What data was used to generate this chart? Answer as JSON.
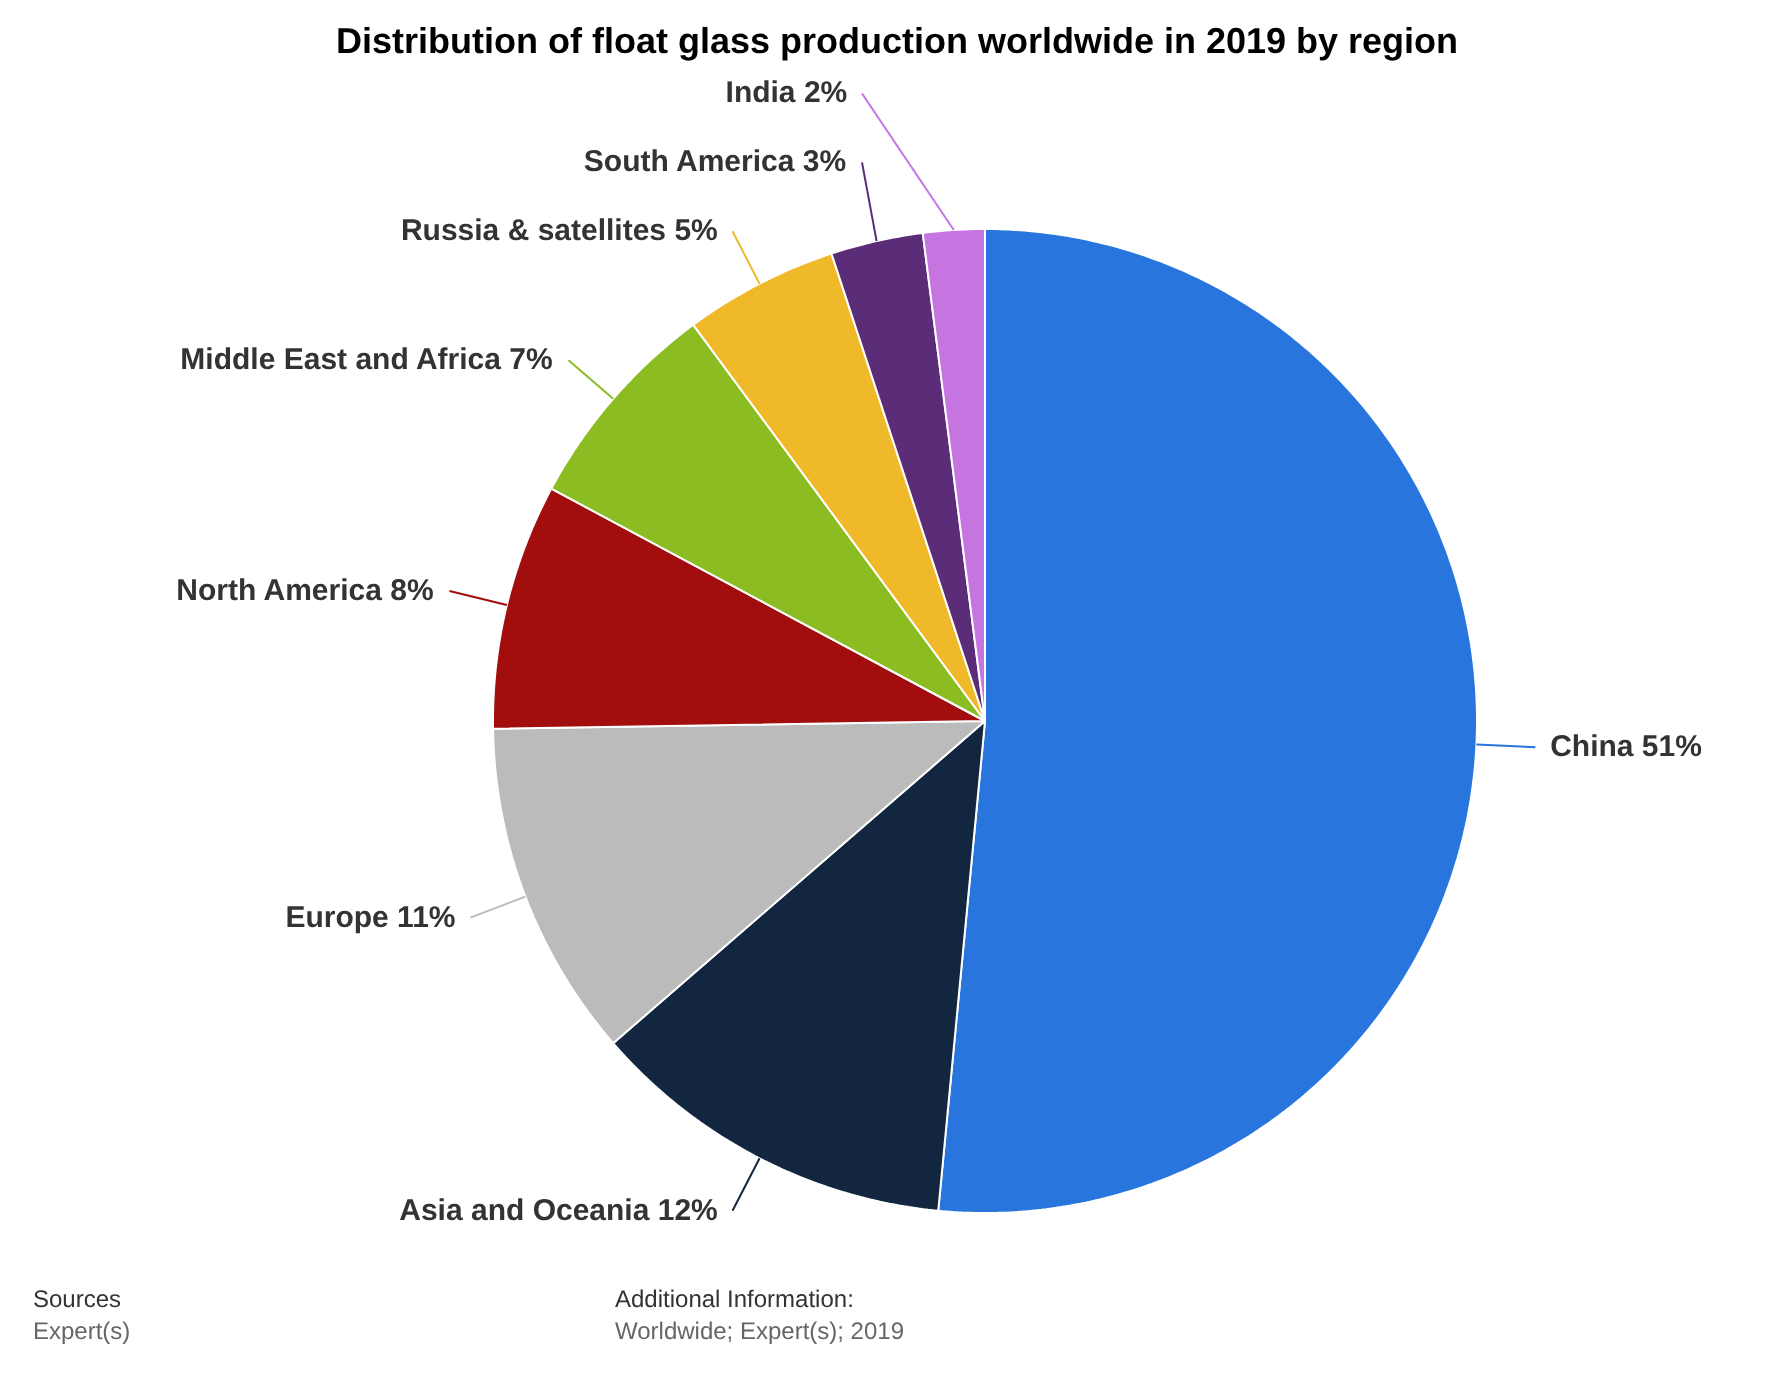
{
  "chart_data": {
    "type": "pie",
    "title": "Distribution of float glass production worldwide in 2019 by region",
    "categories": [
      "China",
      "Asia and Oceania",
      "Europe",
      "North America",
      "Middle East and Africa",
      "Russia & satellites",
      "South America",
      "India"
    ],
    "values": [
      51,
      12,
      11,
      8,
      7,
      5,
      3,
      2
    ],
    "value_labels": [
      "51%",
      "12%",
      "11%",
      "8%",
      "7%",
      "5%",
      "3%",
      "2%"
    ],
    "colors": [
      "#2876dd",
      "#12263f",
      "#bbbbbb",
      "#a20d0d",
      "#8bbc21",
      "#f0b92a",
      "#5b2c78",
      "#c574e0"
    ],
    "annotations": [
      "Sources",
      "Expert(s)",
      "Additional Information:",
      "Worldwide; Expert(s); 2019"
    ]
  }
}
